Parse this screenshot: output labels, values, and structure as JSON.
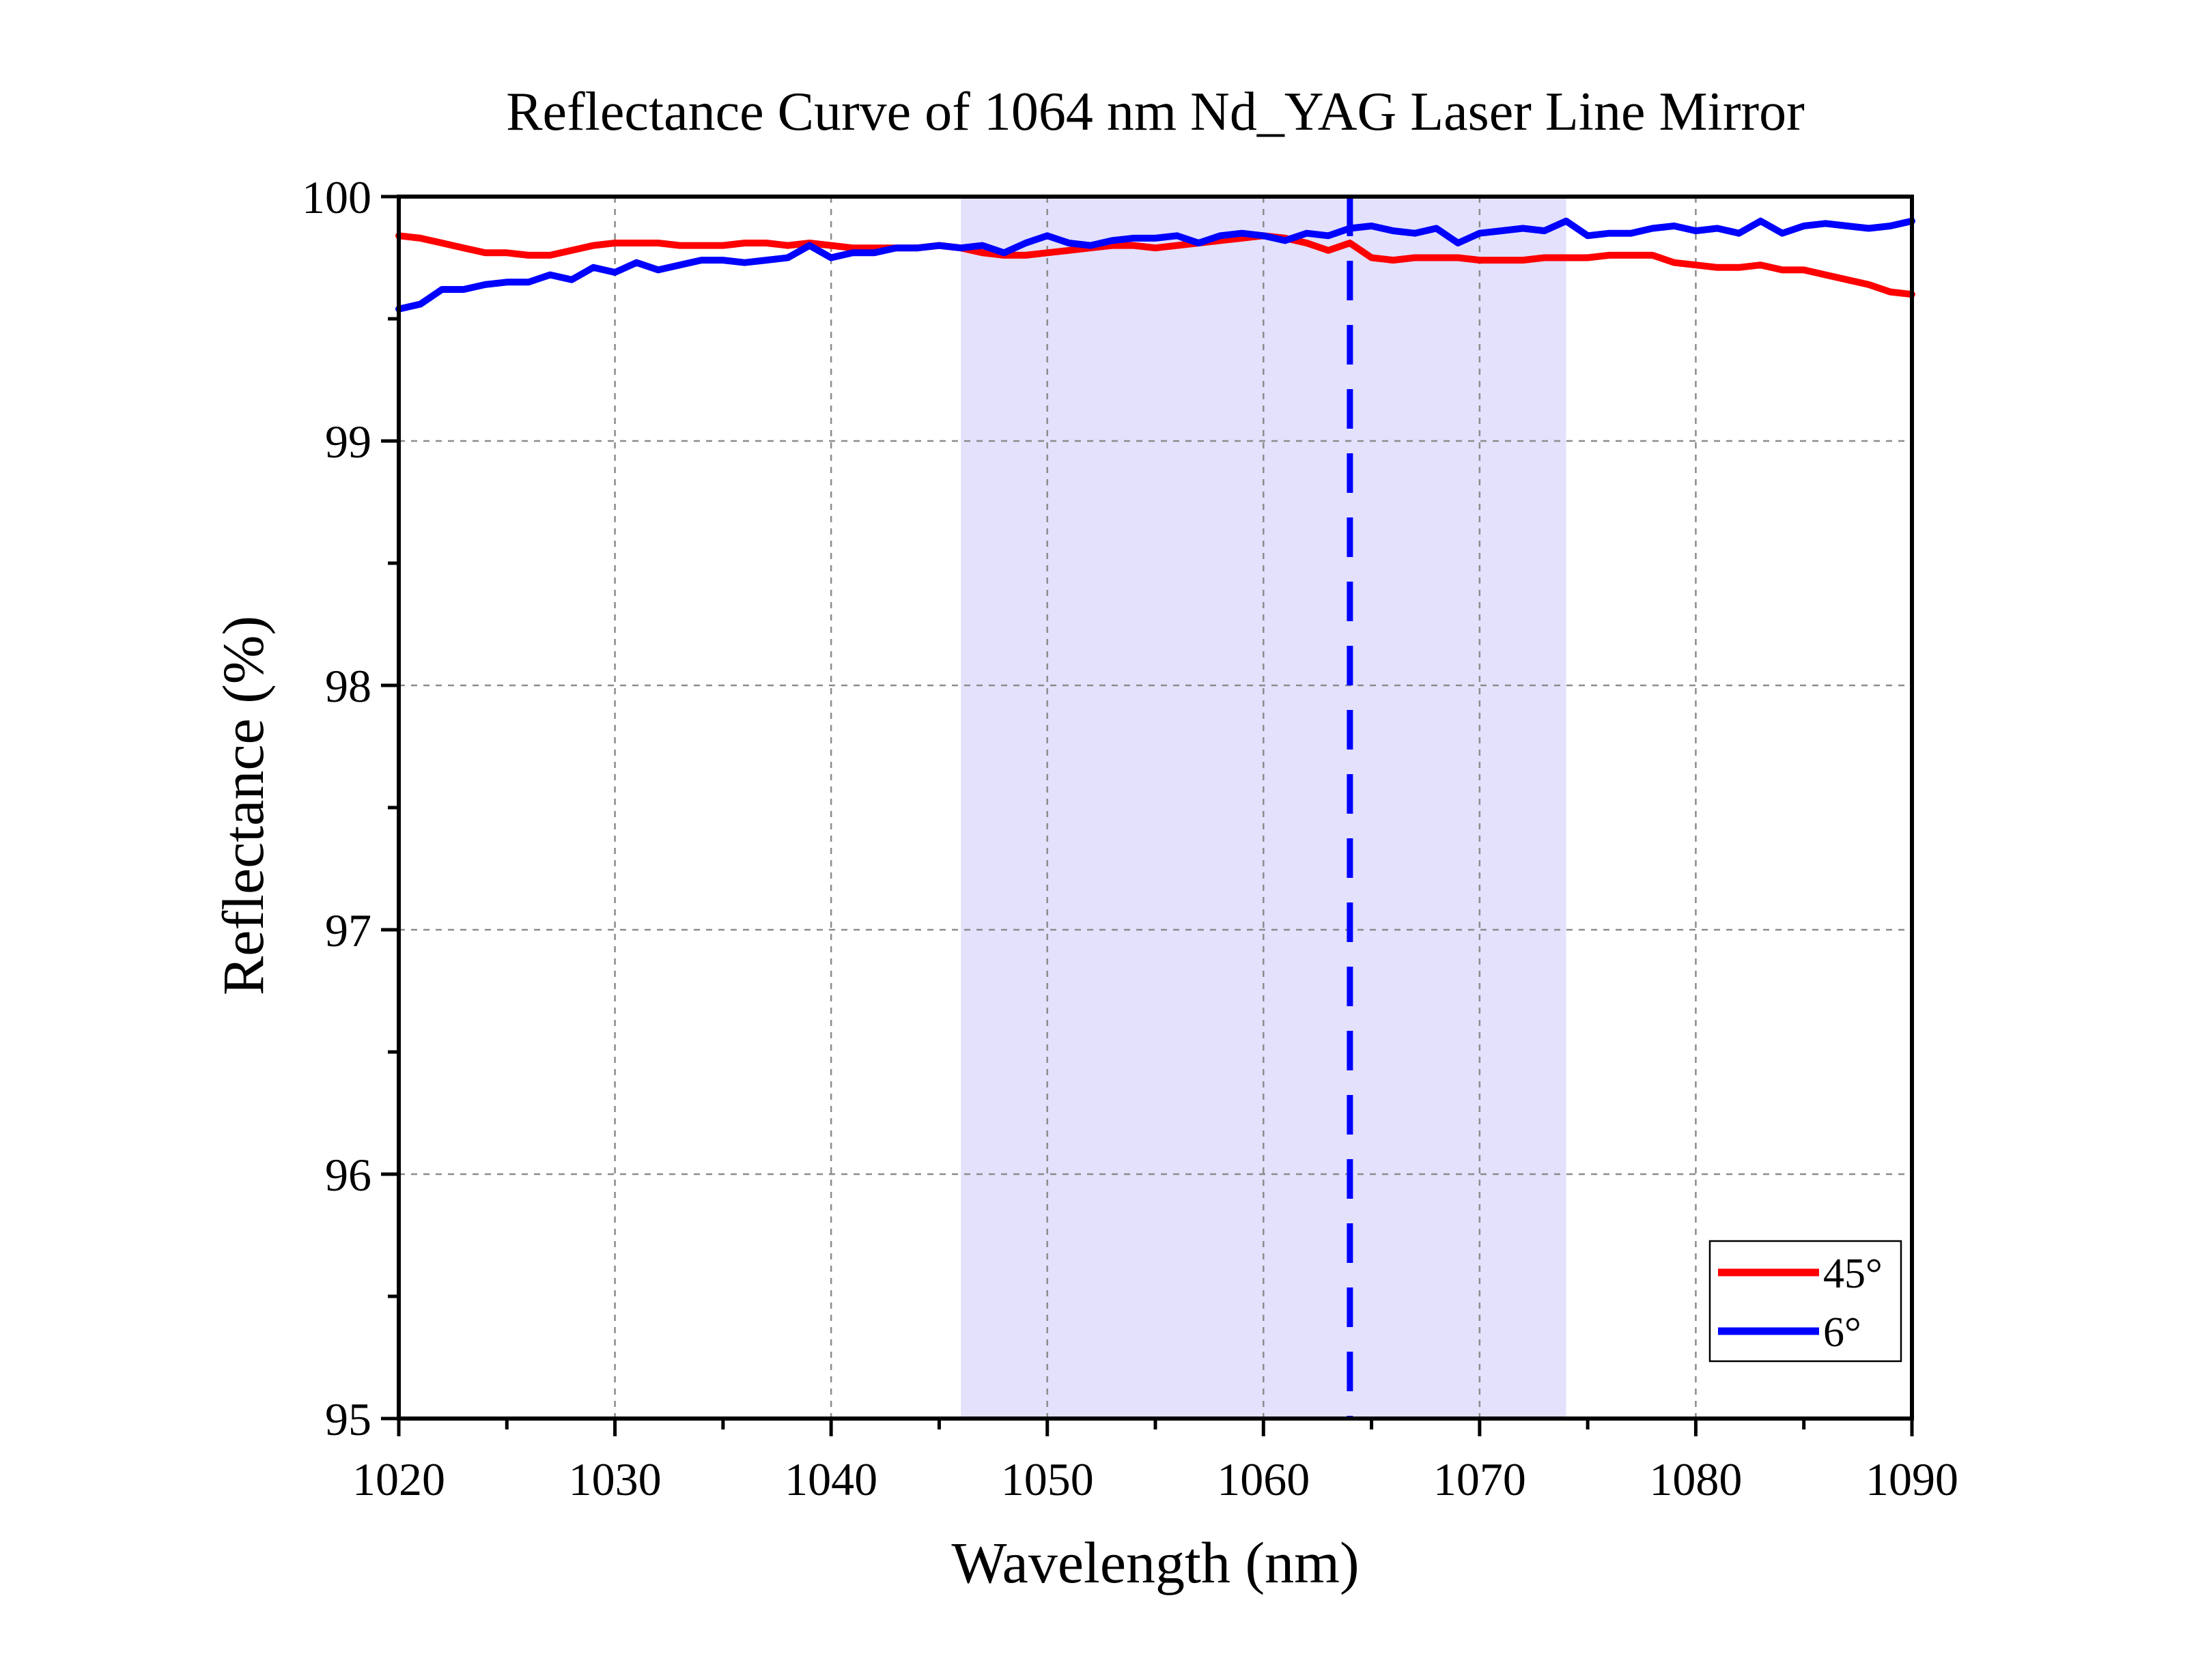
{
  "chart_data": {
    "type": "line",
    "title": "Reflectance Curve of 1064 nm Nd_YAG Laser Line Mirror",
    "xlabel": "Wavelength (nm)",
    "ylabel": "Reflectance (%)",
    "xlim": [
      1020,
      1090
    ],
    "ylim": [
      95,
      100
    ],
    "x_ticks": [
      1020,
      1030,
      1040,
      1050,
      1060,
      1070,
      1080,
      1090
    ],
    "y_ticks": [
      95,
      96,
      97,
      98,
      99,
      100
    ],
    "grid": true,
    "legend_position": "bottom-right",
    "shaded_band": {
      "x_start": 1046,
      "x_end": 1074,
      "color": "#e3e1fc"
    },
    "reference_line": {
      "x": 1064,
      "style": "dashed",
      "color": "#0000ff"
    },
    "series": [
      {
        "name": "45°",
        "color": "#ff0000",
        "points": [
          [
            1020,
            99.84
          ],
          [
            1021,
            99.83
          ],
          [
            1022,
            99.81
          ],
          [
            1023,
            99.79
          ],
          [
            1024,
            99.77
          ],
          [
            1025,
            99.77
          ],
          [
            1026,
            99.76
          ],
          [
            1027,
            99.76
          ],
          [
            1028,
            99.78
          ],
          [
            1029,
            99.8
          ],
          [
            1030,
            99.81
          ],
          [
            1031,
            99.81
          ],
          [
            1032,
            99.81
          ],
          [
            1033,
            99.8
          ],
          [
            1034,
            99.8
          ],
          [
            1035,
            99.8
          ],
          [
            1036,
            99.81
          ],
          [
            1037,
            99.81
          ],
          [
            1038,
            99.8
          ],
          [
            1039,
            99.81
          ],
          [
            1040,
            99.8
          ],
          [
            1041,
            99.79
          ],
          [
            1042,
            99.79
          ],
          [
            1043,
            99.79
          ],
          [
            1044,
            99.79
          ],
          [
            1045,
            99.8
          ],
          [
            1046,
            99.79
          ],
          [
            1047,
            99.77
          ],
          [
            1048,
            99.76
          ],
          [
            1049,
            99.76
          ],
          [
            1050,
            99.77
          ],
          [
            1051,
            99.78
          ],
          [
            1052,
            99.79
          ],
          [
            1053,
            99.8
          ],
          [
            1054,
            99.8
          ],
          [
            1055,
            99.79
          ],
          [
            1056,
            99.8
          ],
          [
            1057,
            99.81
          ],
          [
            1058,
            99.82
          ],
          [
            1059,
            99.83
          ],
          [
            1060,
            99.84
          ],
          [
            1061,
            99.83
          ],
          [
            1062,
            99.81
          ],
          [
            1063,
            99.78
          ],
          [
            1064,
            99.81
          ],
          [
            1065,
            99.75
          ],
          [
            1066,
            99.74
          ],
          [
            1067,
            99.75
          ],
          [
            1068,
            99.75
          ],
          [
            1069,
            99.75
          ],
          [
            1070,
            99.74
          ],
          [
            1071,
            99.74
          ],
          [
            1072,
            99.74
          ],
          [
            1073,
            99.75
          ],
          [
            1074,
            99.75
          ],
          [
            1075,
            99.75
          ],
          [
            1076,
            99.76
          ],
          [
            1077,
            99.76
          ],
          [
            1078,
            99.76
          ],
          [
            1079,
            99.73
          ],
          [
            1080,
            99.72
          ],
          [
            1081,
            99.71
          ],
          [
            1082,
            99.71
          ],
          [
            1083,
            99.72
          ],
          [
            1084,
            99.7
          ],
          [
            1085,
            99.7
          ],
          [
            1086,
            99.68
          ],
          [
            1087,
            99.66
          ],
          [
            1088,
            99.64
          ],
          [
            1089,
            99.61
          ],
          [
            1090,
            99.6
          ]
        ]
      },
      {
        "name": "6°",
        "color": "#0000ff",
        "points": [
          [
            1020,
            99.54
          ],
          [
            1021,
            99.56
          ],
          [
            1022,
            99.62
          ],
          [
            1023,
            99.62
          ],
          [
            1024,
            99.64
          ],
          [
            1025,
            99.65
          ],
          [
            1026,
            99.65
          ],
          [
            1027,
            99.68
          ],
          [
            1028,
            99.66
          ],
          [
            1029,
            99.71
          ],
          [
            1030,
            99.69
          ],
          [
            1031,
            99.73
          ],
          [
            1032,
            99.7
          ],
          [
            1033,
            99.72
          ],
          [
            1034,
            99.74
          ],
          [
            1035,
            99.74
          ],
          [
            1036,
            99.73
          ],
          [
            1037,
            99.74
          ],
          [
            1038,
            99.75
          ],
          [
            1039,
            99.8
          ],
          [
            1040,
            99.75
          ],
          [
            1041,
            99.77
          ],
          [
            1042,
            99.77
          ],
          [
            1043,
            99.79
          ],
          [
            1044,
            99.79
          ],
          [
            1045,
            99.8
          ],
          [
            1046,
            99.79
          ],
          [
            1047,
            99.8
          ],
          [
            1048,
            99.77
          ],
          [
            1049,
            99.81
          ],
          [
            1050,
            99.84
          ],
          [
            1051,
            99.81
          ],
          [
            1052,
            99.8
          ],
          [
            1053,
            99.82
          ],
          [
            1054,
            99.83
          ],
          [
            1055,
            99.83
          ],
          [
            1056,
            99.84
          ],
          [
            1057,
            99.81
          ],
          [
            1058,
            99.84
          ],
          [
            1059,
            99.85
          ],
          [
            1060,
            99.84
          ],
          [
            1061,
            99.82
          ],
          [
            1062,
            99.85
          ],
          [
            1063,
            99.84
          ],
          [
            1064,
            99.87
          ],
          [
            1065,
            99.88
          ],
          [
            1066,
            99.86
          ],
          [
            1067,
            99.85
          ],
          [
            1068,
            99.87
          ],
          [
            1069,
            99.81
          ],
          [
            1070,
            99.85
          ],
          [
            1071,
            99.86
          ],
          [
            1072,
            99.87
          ],
          [
            1073,
            99.86
          ],
          [
            1074,
            99.9
          ],
          [
            1075,
            99.84
          ],
          [
            1076,
            99.85
          ],
          [
            1077,
            99.85
          ],
          [
            1078,
            99.87
          ],
          [
            1079,
            99.88
          ],
          [
            1080,
            99.86
          ],
          [
            1081,
            99.87
          ],
          [
            1082,
            99.85
          ],
          [
            1083,
            99.9
          ],
          [
            1084,
            99.85
          ],
          [
            1085,
            99.88
          ],
          [
            1086,
            99.89
          ],
          [
            1087,
            99.88
          ],
          [
            1088,
            99.87
          ],
          [
            1089,
            99.88
          ],
          [
            1090,
            99.9
          ]
        ]
      }
    ]
  },
  "colors": {
    "frame": "#000000",
    "grid": "#8c8c8c",
    "background": "#ffffff"
  }
}
